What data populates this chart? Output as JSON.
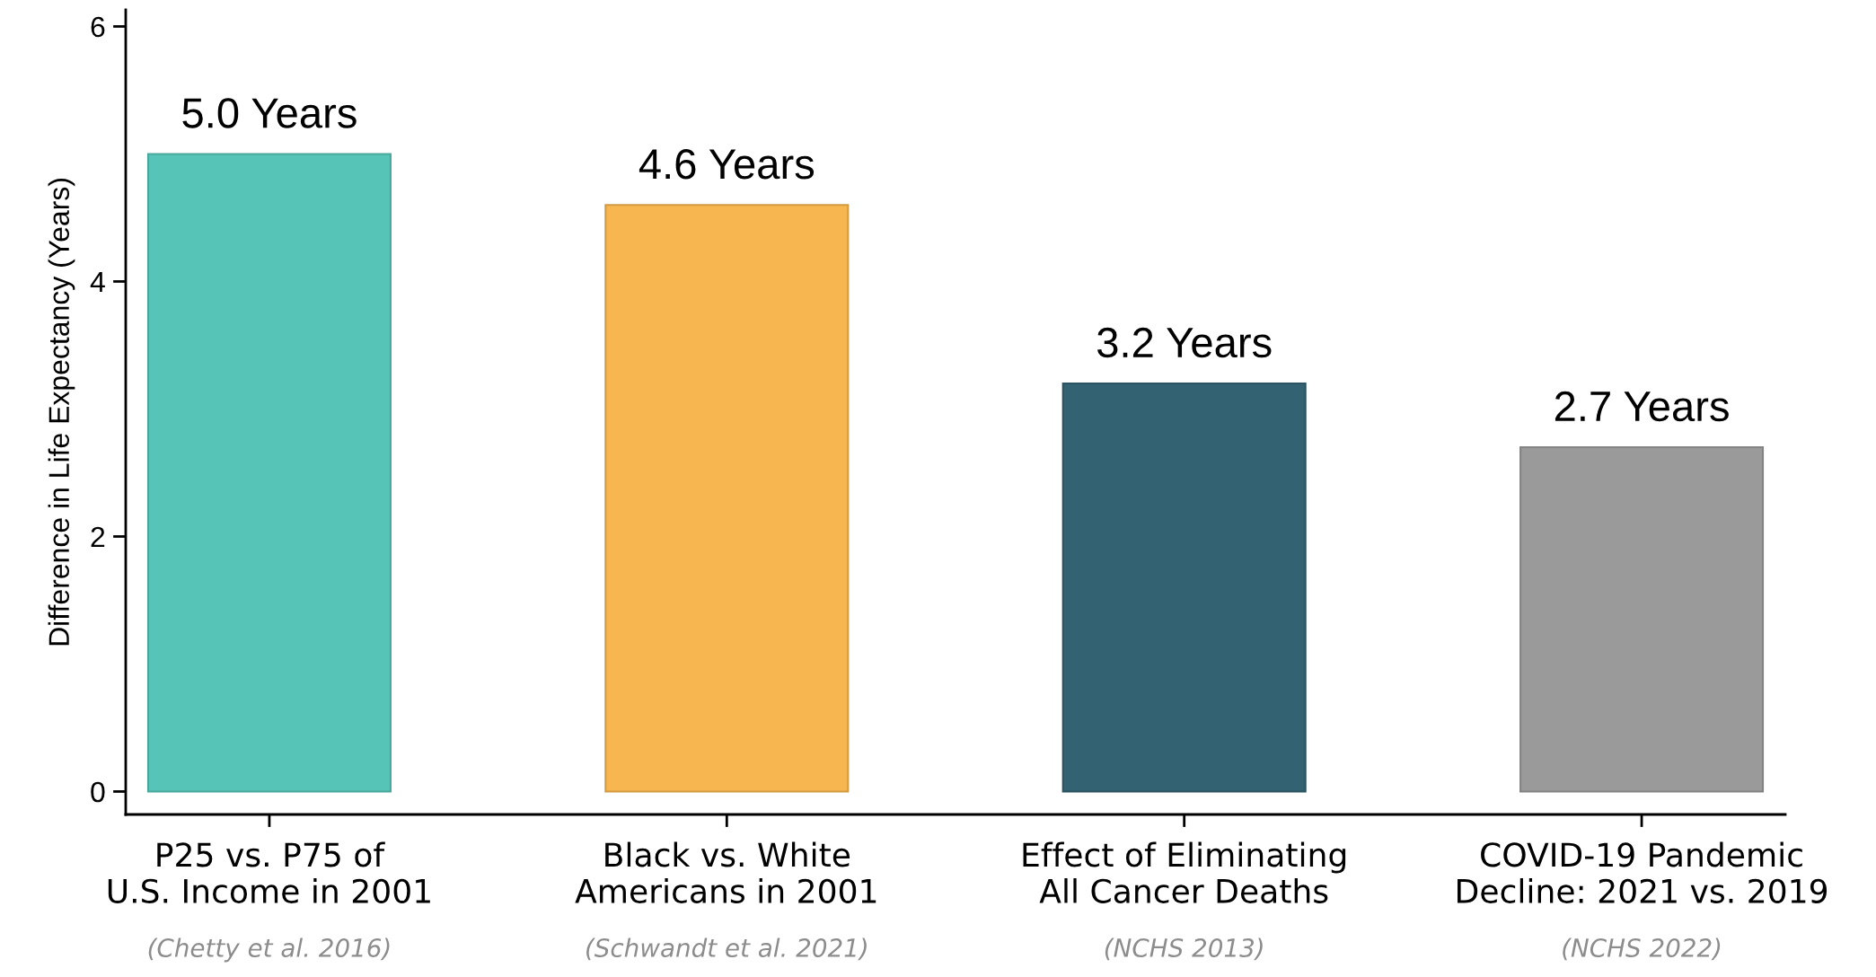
{
  "chart_data": {
    "type": "bar",
    "ylabel": "Difference in Life Expectancy (Years)",
    "categories": [
      "P25 vs. P75 of\nU.S. Income in 2001",
      "Black vs. White\nAmericans in 2001",
      "Effect of Eliminating\nAll Cancer Deaths",
      "COVID-19 Pandemic\nDecline: 2021 vs. 2019"
    ],
    "values": [
      5.0,
      4.6,
      3.2,
      2.7
    ],
    "colors": [
      "#56c5b7",
      "#f7b64f",
      "#336272",
      "#9a9a9a"
    ],
    "value_labels": [
      "5.0 Years",
      "4.6 Years",
      "3.2 Years",
      "2.7 Years"
    ],
    "annotations": [
      "(Chetty et al. 2016)",
      "(Schwandt et al. 2021)",
      "(NCHS 2013)",
      "(NCHS 2022)"
    ],
    "ylim": [
      -0.18,
      6.13
    ],
    "yticks": [
      0,
      2,
      4,
      6
    ],
    "grid": false,
    "legend": false
  }
}
